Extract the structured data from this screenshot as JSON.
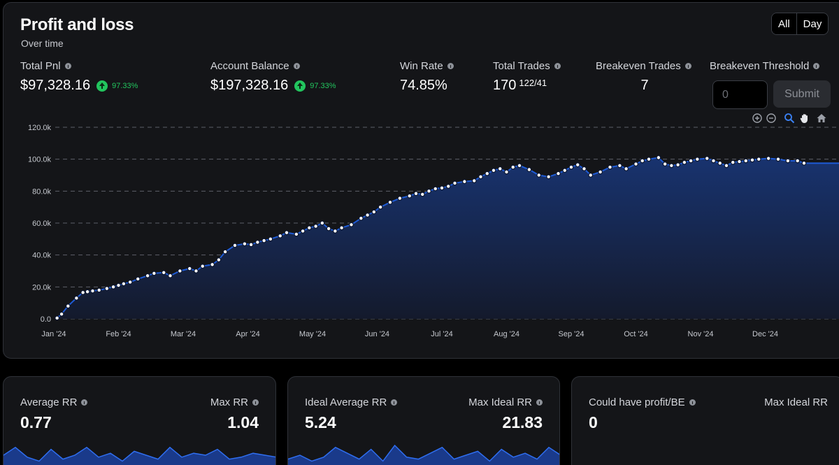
{
  "header": {
    "title": "Profit and loss",
    "subtitle": "Over time",
    "range_options": [
      "All",
      "Day"
    ]
  },
  "stats": {
    "total_pnl": {
      "label": "Total Pnl",
      "value": "$97,328.16",
      "change": "97.33%"
    },
    "account_balance": {
      "label": "Account Balance",
      "value": "$197,328.16",
      "change": "97.33%"
    },
    "win_rate": {
      "label": "Win Rate",
      "value": "74.85%"
    },
    "total_trades": {
      "label": "Total Trades",
      "value": "170",
      "split": "122/41"
    },
    "breakeven_trades": {
      "label": "Breakeven Trades",
      "value": "7"
    },
    "breakeven_threshold": {
      "label": "Breakeven Threshold",
      "placeholder": "0",
      "submit_label": "Submit"
    }
  },
  "toolbar_icons": [
    "zoom-in-icon",
    "zoom-out-icon",
    "magnifier-icon",
    "pan-hand-icon",
    "home-icon"
  ],
  "colors": {
    "background": "#000000",
    "panel": "#141518",
    "line": "#1e5bd6",
    "area_top": "#18336f",
    "area_bottom": "#141a2c",
    "positive": "#22c55e",
    "active_tool": "#3b82f6"
  },
  "chart_data": {
    "type": "area",
    "y_ticks": [
      "120.0k",
      "100.0k",
      "80.0k",
      "60.0k",
      "40.0k",
      "20.0k",
      "0.0"
    ],
    "ylim": [
      0,
      120000
    ],
    "x_ticks": [
      "Jan '24",
      "Feb '24",
      "Mar '24",
      "Apr '24",
      "May '24",
      "Jun '24",
      "Jul '24",
      "Aug '24",
      "Sep '24",
      "Oct '24",
      "Nov '24",
      "Dec '24"
    ],
    "grid": true,
    "series": [
      {
        "x_month_pos": [
          0.05,
          0.12,
          0.22,
          0.35,
          0.45,
          0.52,
          0.6,
          0.7,
          0.82,
          0.92,
          1.0,
          1.08,
          1.18,
          1.3,
          1.45,
          1.55,
          1.7,
          1.8,
          1.95,
          2.1,
          2.2,
          2.3,
          2.45,
          2.55,
          2.65,
          2.8,
          2.95,
          3.05,
          3.15,
          3.25,
          3.35,
          3.5,
          3.6,
          3.75,
          3.85,
          3.95,
          4.05,
          4.15,
          4.25,
          4.35,
          4.45,
          4.6,
          4.75,
          4.85,
          4.95,
          5.05,
          5.2,
          5.35,
          5.5,
          5.6,
          5.7,
          5.8,
          5.9,
          6.0,
          6.1,
          6.2,
          6.35,
          6.5,
          6.6,
          6.7,
          6.8,
          6.9,
          7.0,
          7.1,
          7.2,
          7.35,
          7.5,
          7.65,
          7.8,
          7.9,
          8.0,
          8.1,
          8.2,
          8.3,
          8.45,
          8.6,
          8.75,
          8.85,
          9.0,
          9.1,
          9.2,
          9.35,
          9.45,
          9.55,
          9.65,
          9.75,
          9.85,
          9.95,
          10.1,
          10.2,
          10.3,
          10.4,
          10.5,
          10.6,
          10.7,
          10.8,
          10.9,
          11.05,
          11.2,
          11.35,
          11.5,
          11.6
        ],
        "values": [
          500,
          3000,
          8000,
          13000,
          16500,
          17000,
          17500,
          18000,
          19000,
          20000,
          21000,
          22000,
          23000,
          25000,
          27000,
          28500,
          29000,
          27000,
          30000,
          31500,
          30000,
          33000,
          34000,
          37000,
          42000,
          46000,
          47000,
          46500,
          48000,
          49000,
          50000,
          52000,
          54000,
          53000,
          55000,
          57000,
          58000,
          60000,
          56500,
          55000,
          57000,
          59000,
          63000,
          65000,
          67000,
          70000,
          73000,
          75500,
          77000,
          78500,
          78000,
          80000,
          81500,
          82000,
          83000,
          85000,
          86000,
          86500,
          89000,
          91000,
          93000,
          94000,
          92000,
          95000,
          96000,
          93500,
          90000,
          89000,
          91000,
          93000,
          95000,
          96500,
          94000,
          90000,
          92000,
          95000,
          96000,
          94000,
          97000,
          99000,
          100000,
          101000,
          97000,
          96000,
          96500,
          98000,
          99000,
          100000,
          100500,
          99000,
          97500,
          96000,
          98000,
          98500,
          99000,
          99500,
          100000,
          100500,
          100000,
          99000,
          99000,
          97500
        ]
      }
    ]
  },
  "cards": [
    {
      "left_label": "Average RR",
      "left_value": "0.77",
      "right_label": "Max RR",
      "right_value": "1.04"
    },
    {
      "left_label": "Ideal Average RR",
      "left_value": "5.24",
      "right_label": "Max Ideal RR",
      "right_value": "21.83"
    },
    {
      "left_label": "Could have profit/BE",
      "left_value": "0",
      "right_label": "Max Ideal RR",
      "right_value": ""
    }
  ],
  "sparklines": {
    "average_rr": [
      0.5,
      0.9,
      0.4,
      0.2,
      0.8,
      0.3,
      0.5,
      0.9,
      0.4,
      0.6,
      0.2,
      0.7,
      0.5,
      0.3,
      0.9,
      0.4,
      0.6,
      0.5,
      0.8,
      0.3,
      0.4,
      0.6,
      0.5,
      0.4
    ],
    "ideal_average_rr": [
      0.3,
      0.5,
      0.2,
      0.4,
      0.9,
      0.6,
      0.3,
      0.8,
      0.2,
      1.0,
      0.4,
      0.3,
      0.6,
      0.9,
      0.3,
      0.5,
      0.7,
      0.2,
      0.8,
      0.4,
      0.6,
      0.3,
      0.9,
      0.5
    ]
  }
}
